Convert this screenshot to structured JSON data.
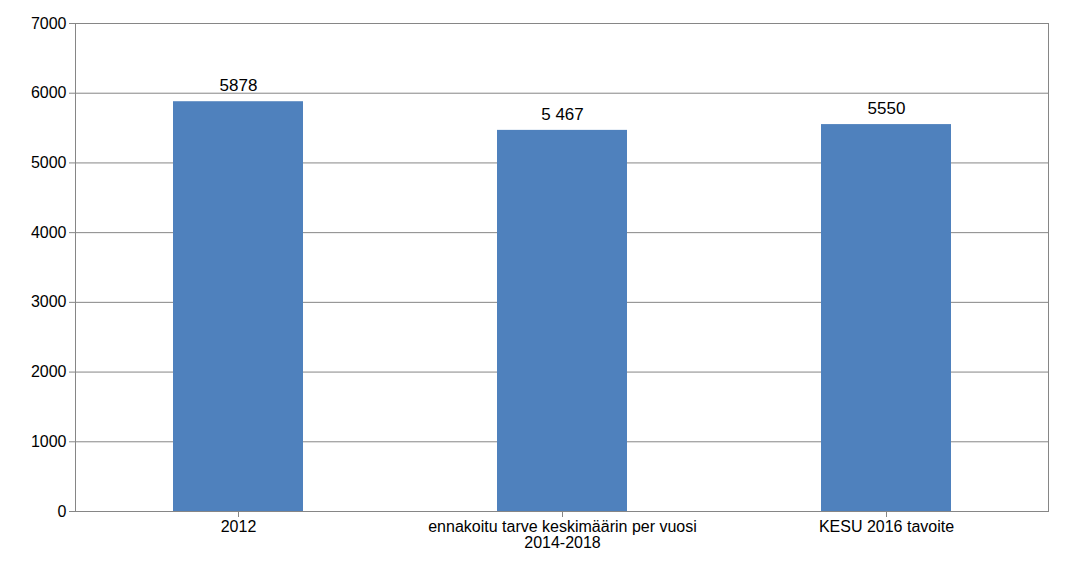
{
  "chart_data": {
    "type": "bar",
    "categories": [
      "2012",
      "ennakoitu tarve keskimäärin per vuosi 2014-2018",
      "KESU 2016 tavoite"
    ],
    "values": [
      5878,
      5467,
      5550
    ],
    "value_labels": [
      "5878",
      "5 467",
      "5550"
    ],
    "color": "#4f81bd",
    "ylim": [
      0,
      7000
    ],
    "yticks": [
      0,
      1000,
      2000,
      3000,
      4000,
      5000,
      6000,
      7000
    ],
    "grid": true,
    "data_labels": true
  }
}
